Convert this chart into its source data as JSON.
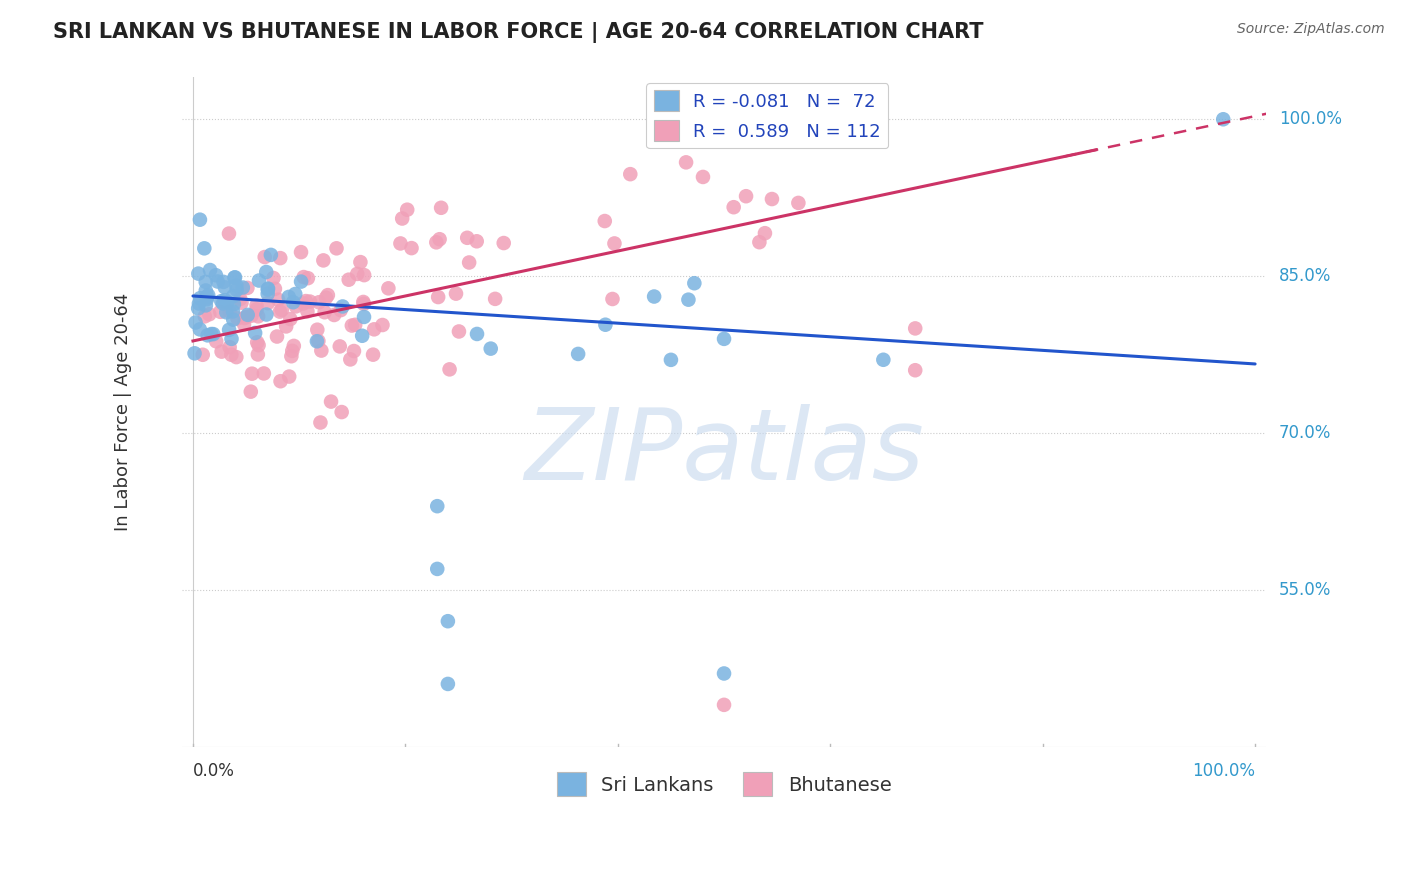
{
  "title": "SRI LANKAN VS BHUTANESE IN LABOR FORCE | AGE 20-64 CORRELATION CHART",
  "source": "Source: ZipAtlas.com",
  "ylabel": "In Labor Force | Age 20-64",
  "ytick_vals": [
    1.0,
    0.85,
    0.7,
    0.55
  ],
  "ytick_labels": [
    "100.0%",
    "85.0%",
    "70.0%",
    "55.0%"
  ],
  "xlim": [
    -0.01,
    1.01
  ],
  "ylim": [
    0.4,
    1.04
  ],
  "sri_lankan_color": "#7ab3e0",
  "bhutanese_color": "#f0a0b8",
  "sri_lankan_line_color": "#2255cc",
  "bhutanese_line_color": "#cc3366",
  "legend_r_sri": "-0.081",
  "legend_n_sri": "72",
  "legend_r_bhu": "0.589",
  "legend_n_bhu": "112",
  "sri_line_intercept": 0.831,
  "sri_line_slope": -0.065,
  "bhu_line_intercept": 0.788,
  "bhu_line_slope": 0.215,
  "watermark_text": "ZIPatlas",
  "watermark_color": "#c5d8ee",
  "title_fontsize": 15,
  "axis_label_fontsize": 13,
  "tick_label_fontsize": 12,
  "legend_fontsize": 13
}
